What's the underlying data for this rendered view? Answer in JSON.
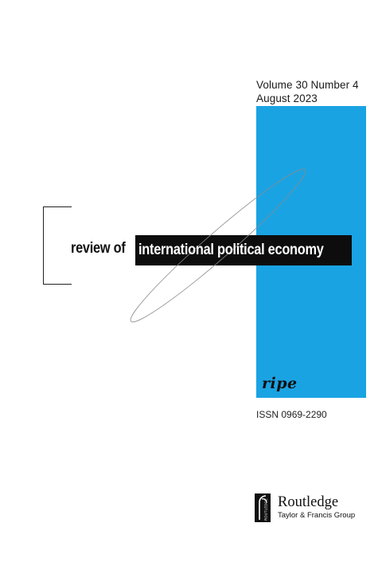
{
  "cover": {
    "volume_line": "Volume  30  Number  4",
    "date_line": "August  2023",
    "title_plain": "review of",
    "title_highlight": "international political economy",
    "journal_abbrev": "ripe",
    "issn": "ISSN 0969-2290",
    "publisher_name": "Routledge",
    "publisher_group": "Taylor & Francis Group",
    "publisher_logo_vertical_text": "ROUTLEDGE"
  },
  "colors": {
    "accent_blue": "#1aa3e3",
    "title_box": "#0d0d0d",
    "text": "#1a1a1a",
    "background": "#ffffff"
  },
  "icons": {
    "publisher_logo": "routledge-logo-icon",
    "decorative_ellipse": "ellipse-outline"
  }
}
